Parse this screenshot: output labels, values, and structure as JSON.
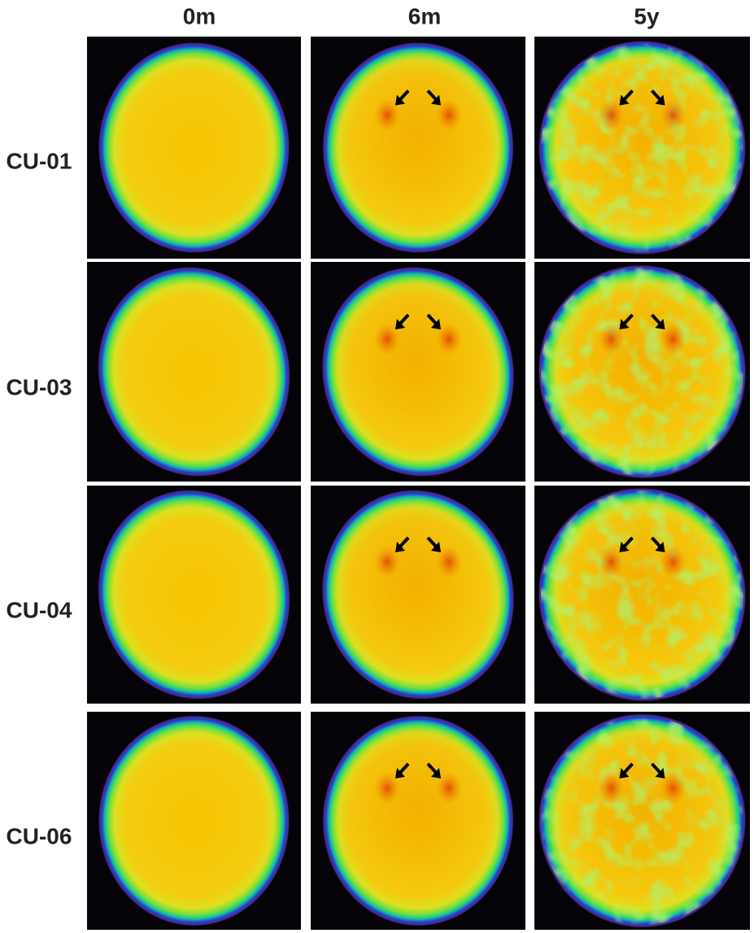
{
  "columns": [
    "0m",
    "6m",
    "5y"
  ],
  "rows": [
    "CU-01",
    "CU-03",
    "CU-04",
    "CU-06"
  ]
}
